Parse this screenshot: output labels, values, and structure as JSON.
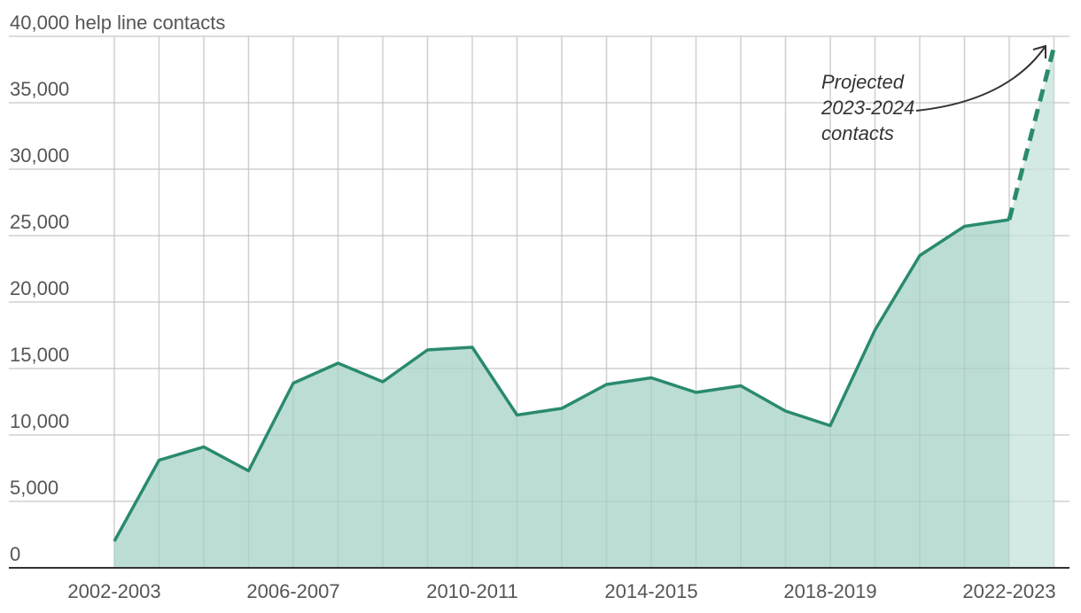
{
  "chart_data": {
    "type": "area",
    "x": [
      "2002-2003",
      "2003-2004",
      "2004-2005",
      "2005-2006",
      "2006-2007",
      "2007-2008",
      "2008-2009",
      "2009-2010",
      "2010-2011",
      "2011-2012",
      "2012-2013",
      "2013-2014",
      "2014-2015",
      "2015-2016",
      "2016-2017",
      "2017-2018",
      "2018-2019",
      "2019-2020",
      "2020-2021",
      "2021-2022",
      "2022-2023",
      "2023-2024"
    ],
    "x_tick_labels": [
      "2002-2003",
      "2006-2007",
      "2010-2011",
      "2014-2015",
      "2018-2019",
      "2022-2023"
    ],
    "series": [
      {
        "values": [
          2000,
          8100,
          9100,
          7300,
          13900,
          15400,
          14000,
          16400,
          16600,
          11500,
          12000,
          13800,
          14300,
          13200,
          13700,
          11800,
          10700,
          17900,
          23500,
          25700,
          26200,
          null
        ],
        "color": "#2a8a6e",
        "area_color": "#bbddd5"
      },
      {
        "values": [
          null,
          null,
          null,
          null,
          null,
          null,
          null,
          null,
          null,
          null,
          null,
          null,
          null,
          null,
          null,
          null,
          null,
          null,
          null,
          null,
          26200,
          39200
        ],
        "style": "dashed",
        "projected": true,
        "color": "#2a8a6e",
        "area_color": "#d3e9e3"
      }
    ],
    "ylim": [
      0,
      40000
    ],
    "y_ticks": [
      0,
      5000,
      10000,
      15000,
      20000,
      25000,
      30000,
      35000,
      40000
    ],
    "y_tick_labels": [
      "0",
      "5,000",
      "10,000",
      "15,000",
      "20,000",
      "25,000",
      "30,000",
      "35,000",
      "40,000 help line contacts"
    ],
    "grid": true,
    "annotation": {
      "lines": [
        "Projected",
        "2023-2024",
        "contacts"
      ],
      "points_to": "2023-2024"
    }
  }
}
